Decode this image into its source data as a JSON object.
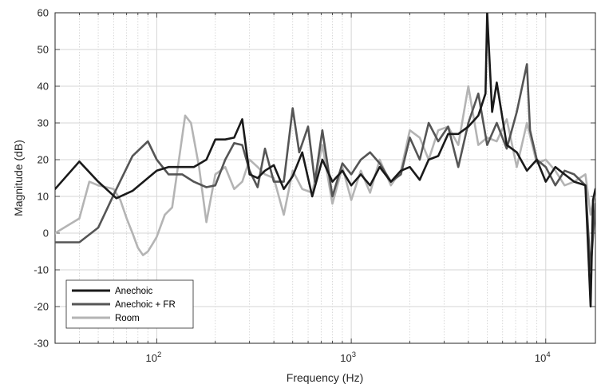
{
  "chart_data": {
    "type": "line",
    "xlabel": "Frequency (Hz)",
    "ylabel": "Magnitude (dB)",
    "xscale": "log",
    "xlim": [
      30,
      18000
    ],
    "ylim": [
      -30,
      60
    ],
    "grid": true,
    "legend_position": "bottom-left",
    "yticks": [
      -30,
      -20,
      -10,
      0,
      10,
      20,
      30,
      40,
      50,
      60
    ],
    "xticks": [
      {
        "value": 100,
        "base": "10",
        "exp": "2"
      },
      {
        "value": 1000,
        "base": "10",
        "exp": "3"
      },
      {
        "value": 10000,
        "base": "10",
        "exp": "4"
      }
    ],
    "series": [
      {
        "name": "Anechoic",
        "color": "#1a1a1a",
        "x": [
          30,
          40,
          50,
          62,
          75,
          90,
          100,
          115,
          135,
          155,
          180,
          200,
          225,
          250,
          275,
          300,
          330,
          360,
          400,
          450,
          500,
          560,
          630,
          710,
          800,
          900,
          1000,
          1120,
          1250,
          1400,
          1600,
          1800,
          2000,
          2250,
          2500,
          2800,
          3150,
          3550,
          4000,
          4500,
          4900,
          5000,
          5300,
          5600,
          6300,
          7100,
          8000,
          9000,
          10000,
          11200,
          12500,
          14000,
          16000,
          17000,
          17500,
          18000
        ],
        "y": [
          12,
          19.5,
          14,
          9.5,
          11.5,
          15,
          17,
          18,
          18,
          18,
          20,
          25.5,
          25.5,
          26,
          31,
          16,
          15,
          17,
          18.5,
          12,
          15.5,
          22,
          10,
          20,
          14,
          17,
          13,
          16,
          13,
          18,
          14,
          17,
          18,
          14.5,
          20,
          21,
          27,
          27,
          29,
          32,
          38,
          60,
          33,
          41,
          24,
          22,
          17,
          20,
          14,
          18,
          16,
          14,
          13,
          -20,
          9,
          12
        ]
      },
      {
        "name": "Anechoic + FR",
        "color": "#555555",
        "x": [
          30,
          40,
          50,
          62,
          75,
          90,
          100,
          115,
          135,
          155,
          180,
          200,
          225,
          250,
          275,
          300,
          330,
          360,
          400,
          450,
          500,
          540,
          600,
          650,
          710,
          800,
          900,
          1000,
          1120,
          1250,
          1400,
          1600,
          1800,
          2000,
          2250,
          2500,
          2800,
          3150,
          3550,
          4000,
          4500,
          5000,
          5600,
          6300,
          7100,
          8000,
          8300,
          9000,
          10000,
          11200,
          12500,
          14000,
          16000,
          17000,
          18000
        ],
        "y": [
          -2.5,
          -2.5,
          1.5,
          12,
          21,
          25,
          20,
          16,
          16,
          14,
          12.5,
          13,
          20,
          24.5,
          24,
          17,
          12.5,
          23,
          14,
          14,
          34,
          22,
          29,
          14,
          28,
          10,
          19,
          16,
          20,
          22,
          19,
          14,
          16,
          26,
          20,
          30,
          25,
          29,
          18,
          30,
          38,
          24,
          30,
          23,
          33,
          46,
          28,
          20,
          18,
          13,
          17,
          16,
          13,
          -10,
          8
        ]
      },
      {
        "name": "Room",
        "color": "#b4b4b4",
        "x": [
          30,
          40,
          45,
          50,
          55,
          60,
          65,
          70,
          75,
          80,
          85,
          90,
          95,
          100,
          110,
          120,
          130,
          140,
          150,
          165,
          180,
          200,
          225,
          250,
          275,
          300,
          330,
          360,
          400,
          450,
          500,
          560,
          630,
          710,
          800,
          900,
          1000,
          1120,
          1250,
          1400,
          1600,
          1800,
          2000,
          2250,
          2500,
          2800,
          3150,
          3550,
          4000,
          4500,
          5000,
          5600,
          6300,
          7100,
          8000,
          9000,
          10000,
          11200,
          12500,
          14000,
          16000,
          17000,
          18000
        ],
        "y": [
          0,
          4,
          14,
          13,
          12.5,
          12,
          9,
          4,
          0,
          -4,
          -6,
          -5,
          -3,
          -1,
          5,
          7,
          20,
          32,
          30,
          18,
          3,
          16,
          18,
          12,
          14,
          20,
          18,
          16,
          15,
          5,
          17,
          12,
          11,
          24,
          8,
          18,
          9,
          17,
          11,
          20,
          13,
          17,
          28,
          26,
          20,
          28,
          29,
          24,
          40,
          24,
          26,
          25,
          31,
          18,
          30,
          19,
          20,
          17,
          13,
          14,
          16,
          5,
          11
        ]
      }
    ]
  }
}
